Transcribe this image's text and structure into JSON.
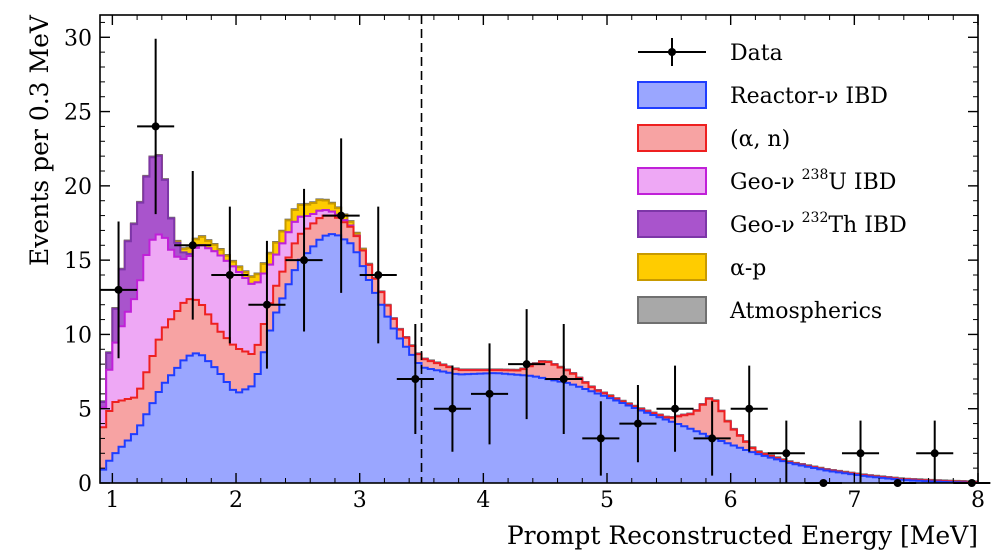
{
  "chart_data": {
    "type": "stacked-histogram",
    "xlabel": "Prompt Reconstructed Energy [MeV]",
    "ylabel": "Events per 0.3 MeV",
    "xlim": [
      0.9,
      8.0
    ],
    "ylim": [
      0,
      31.5
    ],
    "xticks": [
      1,
      2,
      3,
      4,
      5,
      6,
      7,
      8
    ],
    "yticks": [
      0,
      5,
      10,
      15,
      20,
      25,
      30
    ],
    "cut_line_x": 3.5,
    "bin_width_mev": 0.05,
    "legend": [
      {
        "key": "data",
        "label": "Data",
        "marker": "errorbar"
      },
      {
        "key": "reactor",
        "label": "Reactor-ν IBD",
        "fill": "#9aa6ff",
        "edge": "#1f3dff"
      },
      {
        "key": "an",
        "label": "(α, n)",
        "fill": "#f7a3a3",
        "edge": "#ee2020"
      },
      {
        "key": "geoU",
        "label": "Geo-ν",
        "sup": "238",
        "label_tail": "U IBD",
        "fill": "#eea8f5",
        "edge": "#c020d8"
      },
      {
        "key": "geoTh",
        "label": "Geo-ν",
        "sup": "232",
        "label_tail": "Th IBD",
        "fill": "#a954cc",
        "edge": "#7d36a8"
      },
      {
        "key": "ap",
        "label": "α-p",
        "fill": "#ffcc00",
        "edge": "#c89a00"
      },
      {
        "key": "atm",
        "label": "Atmospherics",
        "fill": "#a8a8a8",
        "edge": "#707070"
      }
    ],
    "components": {
      "reactor": {
        "x": [
          0.9,
          1.0,
          1.2,
          1.4,
          1.6,
          1.7,
          1.85,
          2.0,
          2.15,
          2.3,
          2.5,
          2.7,
          2.8,
          2.95,
          3.1,
          3.3,
          3.5,
          3.8,
          4.1,
          4.4,
          4.7,
          5.0,
          5.3,
          5.6,
          5.9,
          6.2,
          6.5,
          6.8,
          7.1,
          7.4,
          7.7,
          8.0
        ],
        "y": [
          0.6,
          1.8,
          3.5,
          6.5,
          8.5,
          8.8,
          7.6,
          6.0,
          6.6,
          11.0,
          14.8,
          16.6,
          16.8,
          16.0,
          13.2,
          10.0,
          7.8,
          7.3,
          7.4,
          7.2,
          6.7,
          5.8,
          4.8,
          3.9,
          2.9,
          2.0,
          1.3,
          0.8,
          0.45,
          0.2,
          0.08,
          0.0
        ]
      },
      "an": {
        "x": [
          0.9,
          1.0,
          1.2,
          1.4,
          1.6,
          1.7,
          1.85,
          2.0,
          2.15,
          2.3,
          2.5,
          2.7,
          2.8,
          2.95,
          3.1,
          3.3,
          3.5,
          3.8,
          4.1,
          4.3,
          4.5,
          4.7,
          4.9,
          5.1,
          5.3,
          5.5,
          5.7,
          5.85,
          6.0,
          6.2,
          6.5,
          6.8,
          7.1,
          7.4,
          7.7,
          8.0
        ],
        "y": [
          2.6,
          3.6,
          2.3,
          3.7,
          3.9,
          3.5,
          2.8,
          3.1,
          2.0,
          1.8,
          1.8,
          1.4,
          1.2,
          1.1,
          1.0,
          0.6,
          0.6,
          0.3,
          0.2,
          0.3,
          1.2,
          0.8,
          0.2,
          0.1,
          0.1,
          0.15,
          1.1,
          2.8,
          1.2,
          0.15,
          0.05,
          0.05,
          0.05,
          0.05,
          0.05,
          0.05
        ]
      },
      "geoU": {
        "x": [
          0.9,
          1.0,
          1.1,
          1.2,
          1.3,
          1.4,
          1.5,
          1.6,
          1.7,
          1.85,
          2.0,
          2.15,
          2.3,
          2.45,
          2.6,
          2.75,
          2.9,
          3.0,
          3.1,
          3.3,
          3.5,
          8.0
        ],
        "y": [
          0.6,
          3.5,
          5.5,
          7.0,
          8.2,
          6.7,
          4.0,
          2.6,
          3.8,
          5.1,
          5.3,
          4.6,
          2.2,
          1.6,
          0.7,
          0.3,
          0.1,
          0.0,
          0.0,
          0.0,
          0.0,
          0.0
        ]
      },
      "geoTh": {
        "x": [
          0.9,
          1.0,
          1.1,
          1.2,
          1.3,
          1.35,
          1.4,
          1.5,
          1.6,
          1.7,
          1.8,
          2.0,
          8.0
        ],
        "y": [
          0.0,
          1.5,
          4.6,
          5.2,
          5.3,
          5.8,
          4.8,
          1.2,
          0.2,
          0.0,
          0.0,
          0.0,
          0.0
        ]
      },
      "ap": {
        "x": [
          0.9,
          1.5,
          1.6,
          1.7,
          1.85,
          2.0,
          2.15,
          2.3,
          2.5,
          2.7,
          2.9,
          3.0,
          3.1,
          8.0
        ],
        "y": [
          0.0,
          0.0,
          0.3,
          0.6,
          0.4,
          0.3,
          0.5,
          0.8,
          0.8,
          0.7,
          0.3,
          0.1,
          0.0,
          0.0
        ]
      },
      "atm": {
        "x": [
          0.9,
          8.0
        ],
        "y": [
          0.05,
          0.05
        ]
      }
    },
    "data_points": [
      {
        "x": 1.05,
        "y": 13,
        "err": 4.6
      },
      {
        "x": 1.35,
        "y": 24,
        "err": 5.9
      },
      {
        "x": 1.65,
        "y": 16,
        "err": 5.0
      },
      {
        "x": 1.95,
        "y": 14,
        "err": 4.6
      },
      {
        "x": 2.25,
        "y": 12,
        "err": 4.3
      },
      {
        "x": 2.55,
        "y": 15,
        "err": 4.8
      },
      {
        "x": 2.85,
        "y": 18,
        "err": 5.2
      },
      {
        "x": 3.15,
        "y": 14,
        "err": 4.6
      },
      {
        "x": 3.45,
        "y": 7,
        "err": 3.7
      },
      {
        "x": 3.75,
        "y": 5,
        "err": 2.9
      },
      {
        "x": 4.05,
        "y": 6,
        "err": 3.4
      },
      {
        "x": 4.35,
        "y": 8,
        "err": 3.7
      },
      {
        "x": 4.65,
        "y": 7,
        "err": 3.7
      },
      {
        "x": 4.95,
        "y": 3,
        "err": 2.5
      },
      {
        "x": 5.25,
        "y": 4,
        "err": 2.6
      },
      {
        "x": 5.55,
        "y": 5,
        "err": 2.9
      },
      {
        "x": 5.85,
        "y": 3,
        "err": 2.5
      },
      {
        "x": 6.15,
        "y": 5,
        "err": 2.9
      },
      {
        "x": 6.45,
        "y": 2,
        "err": 2.2
      },
      {
        "x": 6.75,
        "y": 0,
        "err": 0
      },
      {
        "x": 7.05,
        "y": 2,
        "err": 2.2
      },
      {
        "x": 7.35,
        "y": 0,
        "err": 0
      },
      {
        "x": 7.65,
        "y": 2,
        "err": 2.2
      },
      {
        "x": 7.95,
        "y": 0,
        "err": 0
      }
    ]
  }
}
